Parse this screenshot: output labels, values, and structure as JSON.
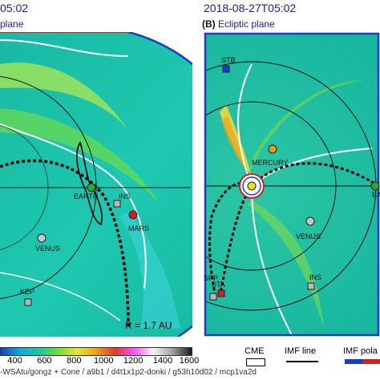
{
  "left_panel": {
    "time_label": "05:02",
    "subtitle": "plane",
    "radius_label": "R = 1.7 AU",
    "bodies": [
      {
        "id": "earth",
        "label": "EARTH",
        "color": "#2fa82f"
      },
      {
        "id": "ins",
        "label": "INS",
        "color": "#b8b8b8"
      },
      {
        "id": "mars",
        "label": "MARS",
        "color": "#d02020"
      },
      {
        "id": "venus",
        "label": "VENUS",
        "color": "#c8c8c8"
      },
      {
        "id": "ker",
        "label": "KEP",
        "color": "#b8b8b8"
      }
    ]
  },
  "right_panel": {
    "time_label": "2018-08-27T05:02",
    "panel_letter": "(B)",
    "panel_title": "Ecliptic plane",
    "bodies": [
      {
        "id": "stb",
        "label": "STB",
        "color": "#1c3cc8"
      },
      {
        "id": "mercury",
        "label": "MERCURY",
        "color": "#e89a1e"
      },
      {
        "id": "venus",
        "label": "VENUS",
        "color": "#c8c8c8"
      },
      {
        "id": "ins",
        "label": "INS",
        "color": "#b8b8b8"
      },
      {
        "id": "sta",
        "label": "STA",
        "color": "#d02020"
      },
      {
        "id": "spp",
        "label": "SPP",
        "color": "#b8b8b8"
      },
      {
        "id": "earth",
        "label": "EA",
        "color": "#2fa82f"
      }
    ]
  },
  "colorbar": {
    "ticks": [
      "400",
      "600",
      "800",
      "1000",
      "1200",
      "1400",
      "1600"
    ],
    "min": 300,
    "max": 1600,
    "stops": [
      "#1a3fbf",
      "#12a9d8",
      "#18c9a0",
      "#6fdc3c",
      "#e6e63a",
      "#f0a020",
      "#e03a2a",
      "#ff55ff",
      "#f4f4f4",
      "#a0a0a0",
      "#1a1a1a"
    ]
  },
  "credit": "-WSAtu/gongz + Cone / a9b1 / d4t1x1p2-donki / g53h10d02 / mcp1va2d",
  "legend": {
    "cme": "CME",
    "imf_line": "IMF line",
    "imf_polarity": "IMF pola"
  }
}
